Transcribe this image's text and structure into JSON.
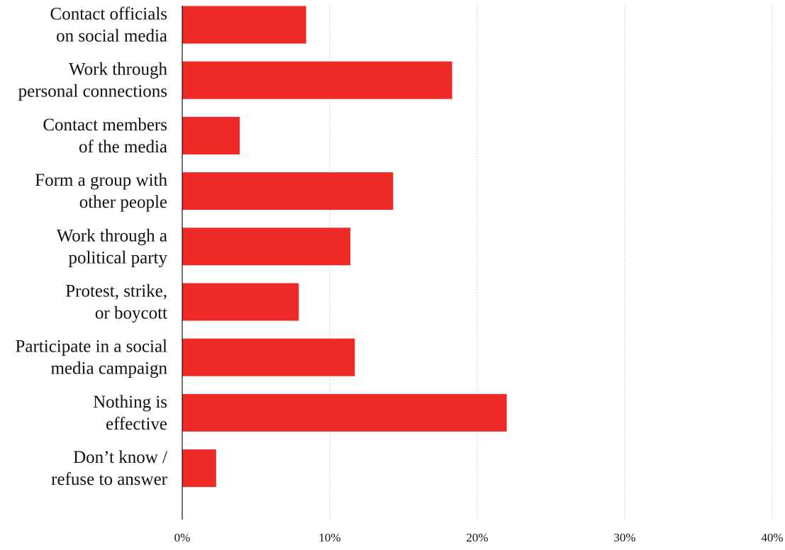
{
  "chart_data": {
    "type": "bar",
    "orientation": "horizontal",
    "categories": [
      [
        "Contact officials",
        "on social media"
      ],
      [
        "Work through",
        "personal connections"
      ],
      [
        "Contact members",
        "of the media"
      ],
      [
        "Form a group with",
        "other people"
      ],
      [
        "Work through a",
        "political party"
      ],
      [
        "Protest, strike,",
        "or boycott"
      ],
      [
        "Participate in a social",
        "media campaign"
      ],
      [
        "Nothing is",
        "effective"
      ],
      [
        "Don’t know /",
        "refuse to answer"
      ]
    ],
    "values": [
      8.4,
      18.3,
      3.9,
      14.3,
      11.4,
      7.9,
      11.7,
      22.0,
      2.3
    ],
    "xlim": [
      0,
      40
    ],
    "xticks": [
      0,
      10,
      20,
      30,
      40
    ],
    "xtick_labels": [
      "0%",
      "10%",
      "20%",
      "30%",
      "40%"
    ],
    "grid": "vertical dotted",
    "bar_color": "#ee2a26",
    "title": "",
    "xlabel": "",
    "ylabel": ""
  }
}
